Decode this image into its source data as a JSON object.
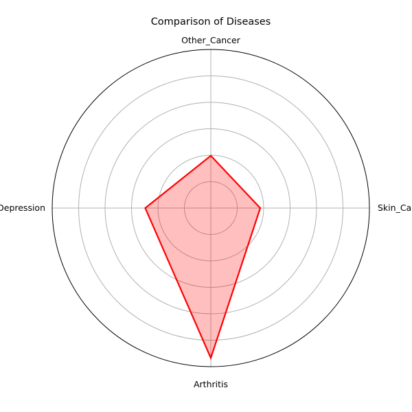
{
  "chart_data": {
    "type": "radar",
    "title": "Comparison of Diseases",
    "categories": [
      "Skin_Cancer",
      "Other_Cancer",
      "Depression",
      "Arthritis"
    ],
    "series": [
      {
        "values": [
          1.87,
          1.98,
          2.48,
          5.67
        ],
        "line_color": "#ff0000",
        "fill_color": "#ff0000",
        "fill_opacity": 0.25
      }
    ],
    "rlim": [
      0,
      6
    ],
    "rings": [
      1,
      2,
      3,
      4,
      5
    ],
    "grid": true,
    "radial_tick_labels_visible": false,
    "outer_ring_color": "#000000",
    "grid_color": "#b0b0b0"
  }
}
